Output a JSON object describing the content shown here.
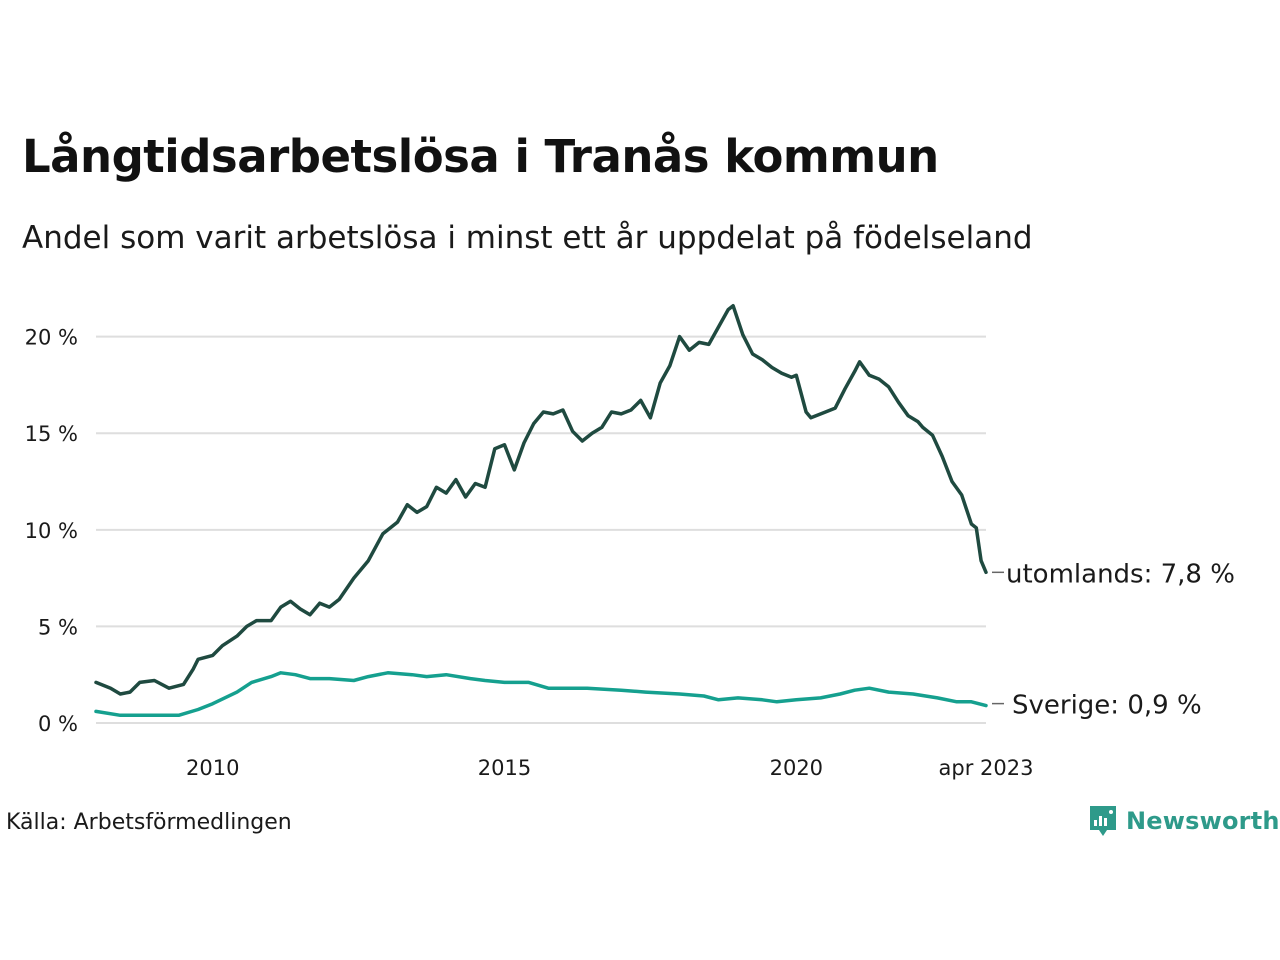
{
  "title": "Långtidsarbetslösa i Tranås kommun",
  "subtitle": "Andel som varit arbetslösa i minst ett år uppdelat på födelseland",
  "source": "Källa: Arbetsförmedlingen",
  "brand": {
    "name": "Newsworthy",
    "icon": "newsworthy-logo-icon",
    "color": "#2e9a8a"
  },
  "chart_data": {
    "type": "line",
    "x_unit": "month",
    "xlim": [
      "2008-01",
      "2023-04"
    ],
    "x_ticks": [
      {
        "date": "2010-01",
        "label": "2010"
      },
      {
        "date": "2015-01",
        "label": "2015"
      },
      {
        "date": "2020-01",
        "label": "2020"
      },
      {
        "date": "2023-04",
        "label": "apr 2023"
      }
    ],
    "ylim": [
      0,
      22
    ],
    "y_ticks": [
      {
        "value": 0,
        "label": "0 %"
      },
      {
        "value": 5,
        "label": "5 %"
      },
      {
        "value": 10,
        "label": "10 %"
      },
      {
        "value": 15,
        "label": "15 %"
      },
      {
        "value": 20,
        "label": "20 %"
      }
    ],
    "grid": "horizontal",
    "series": [
      {
        "name": "utomlands",
        "end_label": "utomlands: 7,8 %",
        "color": "#1f4a40",
        "points": [
          [
            "2008-01",
            2.1
          ],
          [
            "2008-04",
            1.8
          ],
          [
            "2008-06",
            1.5
          ],
          [
            "2008-08",
            1.6
          ],
          [
            "2008-10",
            2.1
          ],
          [
            "2009-01",
            2.2
          ],
          [
            "2009-04",
            1.8
          ],
          [
            "2009-07",
            2.0
          ],
          [
            "2009-09",
            2.8
          ],
          [
            "2009-10",
            3.3
          ],
          [
            "2010-01",
            3.5
          ],
          [
            "2010-03",
            4.0
          ],
          [
            "2010-06",
            4.5
          ],
          [
            "2010-08",
            5.0
          ],
          [
            "2010-10",
            5.3
          ],
          [
            "2011-01",
            5.3
          ],
          [
            "2011-03",
            6.0
          ],
          [
            "2011-05",
            6.3
          ],
          [
            "2011-07",
            5.9
          ],
          [
            "2011-09",
            5.6
          ],
          [
            "2011-11",
            6.2
          ],
          [
            "2012-01",
            6.0
          ],
          [
            "2012-03",
            6.4
          ],
          [
            "2012-06",
            7.5
          ],
          [
            "2012-09",
            8.4
          ],
          [
            "2012-12",
            9.8
          ],
          [
            "2013-03",
            10.4
          ],
          [
            "2013-05",
            11.3
          ],
          [
            "2013-07",
            10.9
          ],
          [
            "2013-09",
            11.2
          ],
          [
            "2013-11",
            12.2
          ],
          [
            "2014-01",
            11.9
          ],
          [
            "2014-03",
            12.6
          ],
          [
            "2014-05",
            11.7
          ],
          [
            "2014-07",
            12.4
          ],
          [
            "2014-09",
            12.2
          ],
          [
            "2014-11",
            14.2
          ],
          [
            "2015-01",
            14.4
          ],
          [
            "2015-03",
            13.1
          ],
          [
            "2015-05",
            14.5
          ],
          [
            "2015-07",
            15.5
          ],
          [
            "2015-09",
            16.1
          ],
          [
            "2015-11",
            16.0
          ],
          [
            "2016-01",
            16.2
          ],
          [
            "2016-03",
            15.1
          ],
          [
            "2016-05",
            14.6
          ],
          [
            "2016-07",
            15.0
          ],
          [
            "2016-09",
            15.3
          ],
          [
            "2016-11",
            16.1
          ],
          [
            "2017-01",
            16.0
          ],
          [
            "2017-03",
            16.2
          ],
          [
            "2017-05",
            16.7
          ],
          [
            "2017-07",
            15.8
          ],
          [
            "2017-09",
            17.6
          ],
          [
            "2017-11",
            18.5
          ],
          [
            "2018-01",
            20.0
          ],
          [
            "2018-03",
            19.3
          ],
          [
            "2018-05",
            19.7
          ],
          [
            "2018-07",
            19.6
          ],
          [
            "2018-09",
            20.5
          ],
          [
            "2018-11",
            21.4
          ],
          [
            "2018-12",
            21.6
          ],
          [
            "2019-02",
            20.1
          ],
          [
            "2019-04",
            19.1
          ],
          [
            "2019-06",
            18.8
          ],
          [
            "2019-08",
            18.4
          ],
          [
            "2019-10",
            18.1
          ],
          [
            "2019-12",
            17.9
          ],
          [
            "2020-01",
            18.0
          ],
          [
            "2020-03",
            16.1
          ],
          [
            "2020-04",
            15.8
          ],
          [
            "2020-07",
            16.1
          ],
          [
            "2020-09",
            16.3
          ],
          [
            "2020-11",
            17.3
          ],
          [
            "2021-01",
            18.2
          ],
          [
            "2021-02",
            18.7
          ],
          [
            "2021-04",
            18.0
          ],
          [
            "2021-06",
            17.8
          ],
          [
            "2021-08",
            17.4
          ],
          [
            "2021-10",
            16.6
          ],
          [
            "2021-12",
            15.9
          ],
          [
            "2022-02",
            15.6
          ],
          [
            "2022-03",
            15.3
          ],
          [
            "2022-05",
            14.9
          ],
          [
            "2022-07",
            13.8
          ],
          [
            "2022-09",
            12.5
          ],
          [
            "2022-11",
            11.8
          ],
          [
            "2023-01",
            10.3
          ],
          [
            "2023-02",
            10.1
          ],
          [
            "2023-03",
            8.4
          ],
          [
            "2023-04",
            7.8
          ]
        ]
      },
      {
        "name": "Sverige",
        "end_label": "Sverige: 0,9 %",
        "color": "#15a08f",
        "points": [
          [
            "2008-01",
            0.6
          ],
          [
            "2008-06",
            0.4
          ],
          [
            "2008-12",
            0.4
          ],
          [
            "2009-06",
            0.4
          ],
          [
            "2009-10",
            0.7
          ],
          [
            "2010-01",
            1.0
          ],
          [
            "2010-06",
            1.6
          ],
          [
            "2010-09",
            2.1
          ],
          [
            "2011-01",
            2.4
          ],
          [
            "2011-03",
            2.6
          ],
          [
            "2011-06",
            2.5
          ],
          [
            "2011-09",
            2.3
          ],
          [
            "2012-01",
            2.3
          ],
          [
            "2012-06",
            2.2
          ],
          [
            "2012-09",
            2.4
          ],
          [
            "2013-01",
            2.6
          ],
          [
            "2013-06",
            2.5
          ],
          [
            "2013-09",
            2.4
          ],
          [
            "2014-01",
            2.5
          ],
          [
            "2014-06",
            2.3
          ],
          [
            "2014-09",
            2.2
          ],
          [
            "2015-01",
            2.1
          ],
          [
            "2015-06",
            2.1
          ],
          [
            "2015-10",
            1.8
          ],
          [
            "2016-01",
            1.8
          ],
          [
            "2016-06",
            1.8
          ],
          [
            "2017-01",
            1.7
          ],
          [
            "2017-06",
            1.6
          ],
          [
            "2018-01",
            1.5
          ],
          [
            "2018-06",
            1.4
          ],
          [
            "2018-09",
            1.2
          ],
          [
            "2019-01",
            1.3
          ],
          [
            "2019-06",
            1.2
          ],
          [
            "2019-09",
            1.1
          ],
          [
            "2020-01",
            1.2
          ],
          [
            "2020-06",
            1.3
          ],
          [
            "2020-10",
            1.5
          ],
          [
            "2021-01",
            1.7
          ],
          [
            "2021-04",
            1.8
          ],
          [
            "2021-08",
            1.6
          ],
          [
            "2022-01",
            1.5
          ],
          [
            "2022-06",
            1.3
          ],
          [
            "2022-10",
            1.1
          ],
          [
            "2023-01",
            1.1
          ],
          [
            "2023-04",
            0.9
          ]
        ]
      }
    ]
  }
}
